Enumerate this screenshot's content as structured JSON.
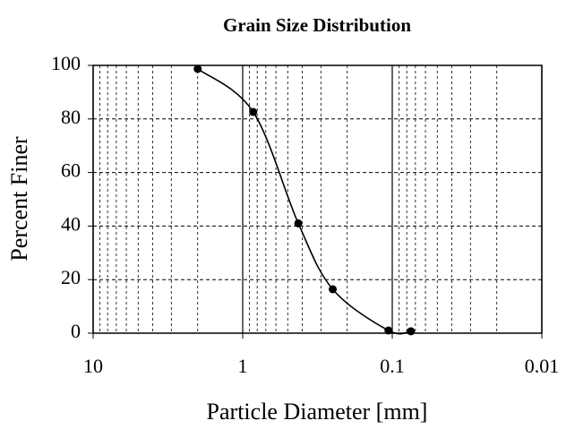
{
  "chart_data": {
    "type": "line",
    "title": "Grain Size Distribution",
    "x_label": "Particle Diameter [mm]",
    "y_label": "Percent Finer",
    "series": [
      {
        "name": "Percent Finer",
        "color": "#000000",
        "x": [
          2.0,
          0.85,
          0.425,
          0.25,
          0.106,
          0.075
        ],
        "values": [
          98.7,
          82.6,
          41,
          16.4,
          1,
          0.7
        ]
      }
    ],
    "smooth": true,
    "markers": true,
    "xscale": "log",
    "xlim": [
      10,
      0.01
    ],
    "xticks": [
      10,
      1,
      0.1,
      0.01
    ],
    "ylim": [
      0,
      100
    ],
    "yticks": [
      0,
      20,
      40,
      60,
      80,
      100
    ],
    "grid": true,
    "minor_grid": true
  }
}
